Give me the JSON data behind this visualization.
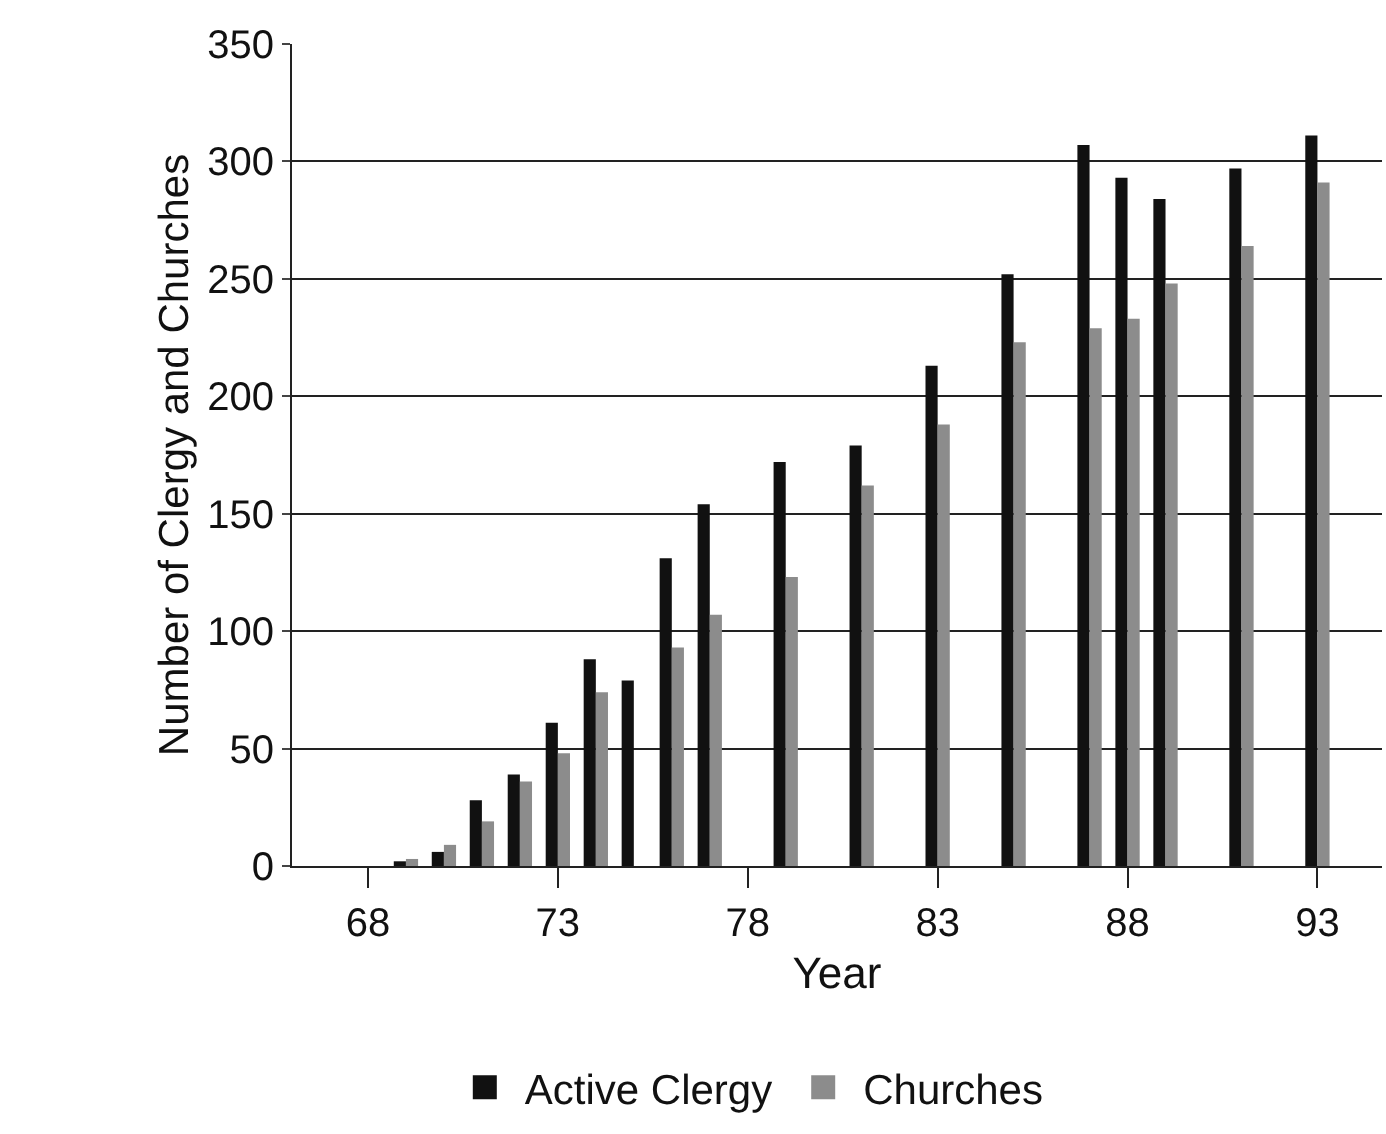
{
  "chart_data": {
    "type": "bar",
    "xlabel": "Year",
    "ylabel": "Number of Clergy and Churches",
    "x": [
      69,
      70,
      71,
      72,
      73,
      74,
      75,
      76,
      77,
      79,
      81,
      83,
      85,
      87,
      88,
      89,
      91,
      93
    ],
    "series": [
      {
        "name": "Active Clergy",
        "color": "#111111",
        "values": [
          2,
          6,
          28,
          39,
          61,
          88,
          79,
          131,
          154,
          172,
          179,
          213,
          252,
          307,
          293,
          284,
          297,
          311
        ]
      },
      {
        "name": "Churches",
        "color": "#8c8c8c",
        "values": [
          3,
          9,
          19,
          36,
          48,
          74,
          null,
          93,
          107,
          123,
          162,
          188,
          223,
          229,
          233,
          248,
          264,
          291
        ]
      }
    ],
    "xlim": [
      66,
      94.7
    ],
    "xticks": [
      68,
      73,
      78,
      83,
      88,
      93
    ],
    "ylim": [
      0,
      350
    ],
    "yticks": [
      0,
      50,
      100,
      150,
      200,
      250,
      300,
      350
    ],
    "grid": "y",
    "legend": "bottom"
  }
}
